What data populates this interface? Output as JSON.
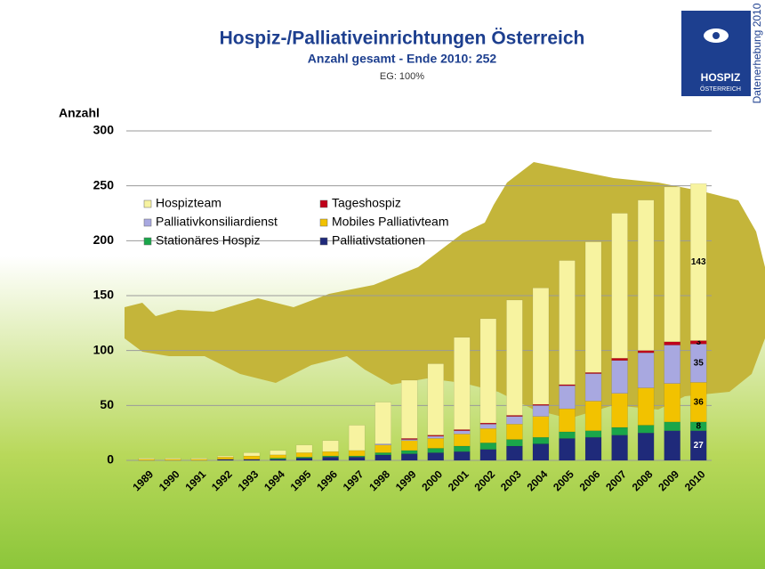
{
  "chart_data": {
    "type": "bar",
    "stacked": true,
    "title": "Hospiz-/Palliativeinrichtungen Österreich",
    "subtitle": "Anzahl gesamt - Ende 2010: 252",
    "note": "EG: 100%",
    "y_label": "Anzahl",
    "side_text": "Datenerhebung 2010",
    "logo_text": [
      "HOSPIZ",
      "ÖSTERREICH"
    ],
    "categories": [
      "1989",
      "1990",
      "1991",
      "1992",
      "1993",
      "1994",
      "1995",
      "1996",
      "1997",
      "1998",
      "1999",
      "2000",
      "2001",
      "2002",
      "2003",
      "2004",
      "2005",
      "2006",
      "2007",
      "2008",
      "2009",
      "2010"
    ],
    "ylim": [
      0,
      300
    ],
    "yticks": [
      0,
      50,
      100,
      150,
      200,
      250,
      300
    ],
    "grid": true,
    "series": [
      {
        "name": "Palliativstationen",
        "color": "#1f2a7a",
        "values": [
          0,
          0,
          0,
          1,
          1,
          1,
          2,
          3,
          3,
          5,
          6,
          7,
          8,
          10,
          13,
          15,
          20,
          21,
          23,
          25,
          27,
          27
        ]
      },
      {
        "name": "Stationäres Hospiz",
        "color": "#1aa64a",
        "values": [
          0,
          0,
          0,
          0,
          0,
          1,
          1,
          1,
          1,
          2,
          3,
          4,
          5,
          6,
          6,
          6,
          6,
          6,
          7,
          7,
          8,
          8
        ]
      },
      {
        "name": "Mobiles Palliativteam",
        "color": "#f2c200",
        "values": [
          1,
          1,
          1,
          2,
          3,
          3,
          4,
          4,
          5,
          7,
          9,
          9,
          11,
          13,
          14,
          19,
          21,
          27,
          31,
          34,
          35,
          36
        ]
      },
      {
        "name": "Palliativkonsiliardienst",
        "color": "#a8a8e0",
        "values": [
          0,
          0,
          0,
          0,
          0,
          0,
          0,
          0,
          0,
          1,
          1,
          2,
          3,
          4,
          7,
          10,
          21,
          25,
          30,
          32,
          35,
          35
        ]
      },
      {
        "name": "Tageshospiz",
        "color": "#c0001a",
        "values": [
          0,
          0,
          0,
          0,
          0,
          0,
          0,
          0,
          0,
          0,
          1,
          1,
          1,
          1,
          1,
          1,
          1,
          1,
          2,
          2,
          3,
          3
        ]
      },
      {
        "name": "Hospizteam",
        "color": "#f7f3a0",
        "values": [
          1,
          1,
          1,
          1,
          3,
          4,
          7,
          10,
          23,
          38,
          53,
          65,
          84,
          95,
          105,
          106,
          113,
          119,
          132,
          137,
          141,
          143
        ]
      }
    ]
  }
}
